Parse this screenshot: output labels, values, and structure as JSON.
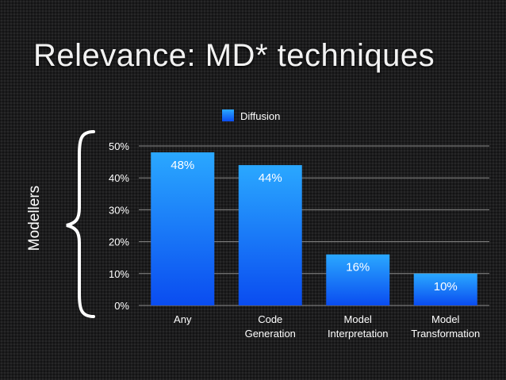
{
  "slide": {
    "title": "Relevance: MD* techniques",
    "side_label": "Modellers"
  },
  "chart_data": {
    "type": "bar",
    "categories": [
      [
        "Any"
      ],
      [
        "Code",
        "Generation"
      ],
      [
        "Model",
        "Interpretation"
      ],
      [
        "Model",
        "Transformation"
      ]
    ],
    "series": [
      {
        "name": "Diffusion",
        "values": [
          48,
          44,
          16,
          10
        ],
        "labels": [
          "48%",
          "44%",
          "16%",
          "10%"
        ]
      }
    ],
    "yticks": [
      "0%",
      "10%",
      "20%",
      "30%",
      "40%",
      "50%"
    ],
    "ylim": [
      0,
      50
    ],
    "grid": true,
    "legend_position": "top-center",
    "colors": {
      "bar_top": "#2aa8ff",
      "bar_bottom": "#0a4cf0",
      "grid": "#8a8a8a"
    }
  }
}
